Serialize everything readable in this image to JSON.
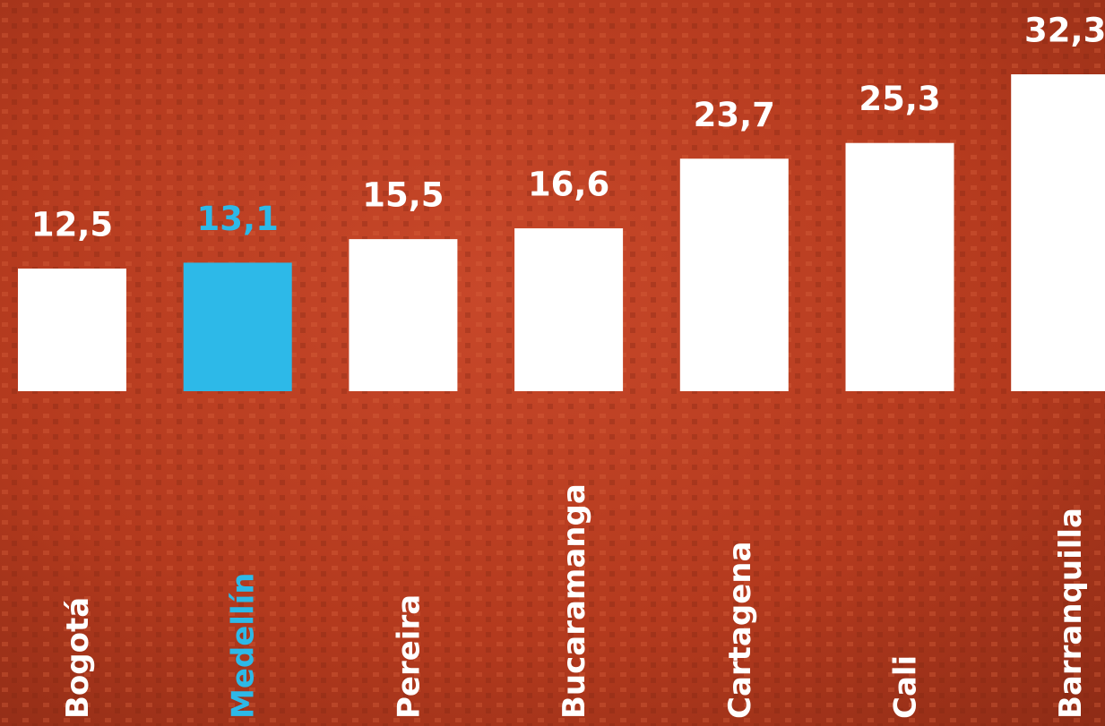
{
  "chart_data": {
    "type": "bar",
    "categories": [
      "Bogotá",
      "Medellín",
      "Pereira",
      "Bucaramanga",
      "Cartagena",
      "Cali",
      "Barranquilla"
    ],
    "values": [
      12.5,
      13.1,
      15.5,
      16.6,
      23.7,
      25.3,
      32.3
    ],
    "value_labels": [
      "12,5",
      "13,1",
      "15,5",
      "16,6",
      "23,7",
      "25,3",
      "32,3"
    ],
    "colors": [
      "#ffffff",
      "#2db9e8",
      "#ffffff",
      "#ffffff",
      "#ffffff",
      "#ffffff",
      "#ffffff"
    ]
  }
}
